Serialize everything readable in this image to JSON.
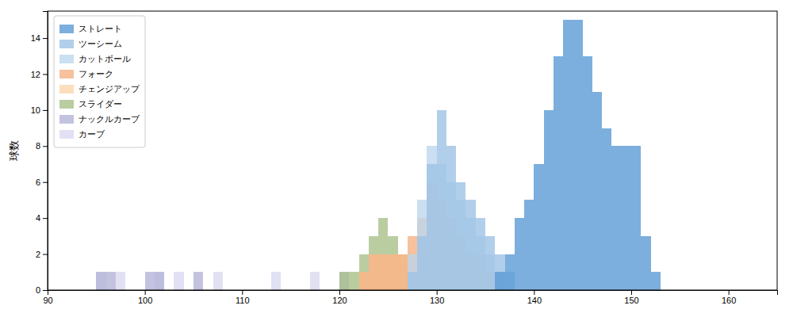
{
  "chart_data": {
    "type": "histogram",
    "ylabel": "球数",
    "xlim": [
      90,
      165
    ],
    "ylim": [
      0,
      15.5
    ],
    "xticks": [
      90,
      100,
      110,
      120,
      130,
      140,
      150,
      160
    ],
    "yticks": [
      0,
      2,
      4,
      6,
      8,
      10,
      12,
      14
    ],
    "legend": "upper left",
    "bins": [
      90,
      91,
      92,
      93,
      94,
      95,
      96,
      97,
      98,
      99,
      100,
      101,
      102,
      103,
      104,
      105,
      106,
      107,
      108,
      109,
      110,
      111,
      112,
      113,
      114,
      115,
      116,
      117,
      118,
      119,
      120,
      121,
      122,
      123,
      124,
      125,
      126,
      127,
      128,
      129,
      130,
      131,
      132,
      133,
      134,
      135,
      136,
      137,
      138,
      139,
      140,
      141,
      142,
      143,
      144,
      145,
      146,
      147,
      148,
      149,
      150,
      151,
      152,
      153,
      154,
      155,
      156,
      157,
      158,
      159,
      160,
      161,
      162,
      163,
      164,
      165
    ],
    "series": [
      {
        "name": "ストレート",
        "color": "#5B9BD5",
        "values": [
          0,
          0,
          0,
          0,
          0,
          0,
          0,
          0,
          0,
          0,
          0,
          0,
          0,
          0,
          0,
          0,
          0,
          0,
          0,
          0,
          0,
          0,
          0,
          0,
          0,
          0,
          0,
          0,
          0,
          0,
          0,
          0,
          0,
          0,
          0,
          0,
          0,
          0,
          0,
          0,
          0,
          0,
          0,
          0,
          0,
          0,
          1,
          2,
          4,
          5,
          7,
          10,
          13,
          15,
          15,
          13,
          11,
          9,
          8,
          8,
          8,
          3,
          1,
          0,
          0,
          0,
          0,
          0,
          0,
          0,
          0,
          0,
          0,
          0,
          0
        ]
      },
      {
        "name": "ツーシーム",
        "color": "#9DC3E6",
        "values": [
          0,
          0,
          0,
          0,
          0,
          0,
          0,
          0,
          0,
          0,
          0,
          0,
          0,
          0,
          0,
          0,
          0,
          0,
          0,
          0,
          0,
          0,
          0,
          0,
          0,
          0,
          0,
          0,
          0,
          0,
          0,
          0,
          0,
          0,
          0,
          0,
          0,
          1,
          3,
          7,
          10,
          8,
          6,
          5,
          4,
          3,
          2,
          1,
          0,
          0,
          0,
          0,
          0,
          0,
          0,
          0,
          0,
          0,
          0,
          0,
          0,
          0,
          0,
          0,
          0,
          0,
          0,
          0,
          0,
          0,
          0,
          0,
          0,
          0,
          0
        ]
      },
      {
        "name": "カットボール",
        "color": "#BDD7EE",
        "values": [
          0,
          0,
          0,
          0,
          0,
          0,
          0,
          0,
          0,
          0,
          0,
          0,
          0,
          0,
          0,
          0,
          0,
          0,
          0,
          0,
          0,
          0,
          0,
          0,
          0,
          0,
          0,
          0,
          0,
          0,
          0,
          0,
          0,
          0,
          0,
          0,
          0,
          2,
          5,
          8,
          7,
          6,
          5,
          4,
          3,
          2,
          1,
          0,
          0,
          0,
          0,
          0,
          0,
          0,
          0,
          0,
          0,
          0,
          0,
          0,
          0,
          0,
          0,
          0,
          0,
          0,
          0,
          0,
          0,
          0,
          0,
          0,
          0,
          0,
          0
        ]
      },
      {
        "name": "フォーク",
        "color": "#F4B183",
        "values": [
          0,
          0,
          0,
          0,
          0,
          0,
          0,
          0,
          0,
          0,
          0,
          0,
          0,
          0,
          0,
          0,
          0,
          0,
          0,
          0,
          0,
          0,
          0,
          0,
          0,
          0,
          0,
          0,
          0,
          0,
          0,
          0,
          1,
          2,
          2,
          2,
          2,
          3,
          4,
          6,
          5,
          4,
          3,
          2,
          2,
          1,
          0,
          0,
          0,
          0,
          0,
          0,
          0,
          0,
          0,
          0,
          0,
          0,
          0,
          0,
          0,
          0,
          0,
          0,
          0,
          0,
          0,
          0,
          0,
          0,
          0,
          0,
          0,
          0,
          0
        ]
      },
      {
        "name": "チェンジアップ",
        "color": "#FAD7AC",
        "values": [
          0,
          0,
          0,
          0,
          0,
          0,
          0,
          0,
          0,
          0,
          0,
          0,
          0,
          0,
          0,
          0,
          0,
          0,
          0,
          0,
          0,
          0,
          0,
          0,
          0,
          0,
          0,
          0,
          0,
          0,
          0,
          0,
          1,
          2,
          2,
          2,
          2,
          2,
          2,
          2,
          2,
          1,
          1,
          1,
          1,
          1,
          0,
          0,
          0,
          0,
          0,
          0,
          0,
          0,
          0,
          0,
          0,
          0,
          0,
          0,
          0,
          0,
          0,
          0,
          0,
          0,
          0,
          0,
          0,
          0,
          0,
          0,
          0,
          0,
          0
        ]
      },
      {
        "name": "スライダー",
        "color": "#A9C08A",
        "values": [
          0,
          0,
          0,
          0,
          0,
          0,
          0,
          0,
          0,
          0,
          0,
          0,
          0,
          0,
          0,
          0,
          0,
          0,
          0,
          0,
          0,
          0,
          0,
          0,
          0,
          0,
          0,
          0,
          0,
          0,
          1,
          1,
          2,
          3,
          4,
          3,
          2,
          2,
          2,
          1,
          1,
          0,
          0,
          0,
          0,
          0,
          0,
          0,
          0,
          0,
          0,
          0,
          0,
          0,
          0,
          0,
          0,
          0,
          0,
          0,
          0,
          0,
          0,
          0,
          0,
          0,
          0,
          0,
          0,
          0,
          0,
          0,
          0,
          0,
          0
        ]
      },
      {
        "name": "ナックルカーブ",
        "color": "#B4B4D8",
        "values": [
          0,
          0,
          0,
          0,
          0,
          1,
          1,
          0,
          0,
          0,
          1,
          1,
          0,
          0,
          0,
          1,
          0,
          0,
          0,
          0,
          0,
          0,
          0,
          0,
          0,
          0,
          0,
          0,
          0,
          0,
          1,
          0,
          0,
          0,
          0,
          0,
          0,
          0,
          0,
          0,
          0,
          0,
          0,
          0,
          0,
          1,
          0,
          0,
          0,
          0,
          0,
          0,
          0,
          0,
          0,
          0,
          0,
          0,
          0,
          0,
          0,
          0,
          0,
          0,
          0,
          0,
          0,
          0,
          0,
          0,
          0,
          0,
          0,
          0,
          0
        ]
      },
      {
        "name": "カーブ",
        "color": "#D9D9F0",
        "values": [
          0,
          0,
          0,
          0,
          0,
          1,
          0,
          1,
          0,
          0,
          0,
          1,
          0,
          1,
          0,
          0,
          0,
          1,
          0,
          0,
          0,
          0,
          0,
          1,
          0,
          0,
          0,
          1,
          0,
          0,
          0,
          0,
          0,
          0,
          0,
          0,
          0,
          0,
          0,
          0,
          0,
          0,
          0,
          0,
          0,
          0,
          0,
          0,
          0,
          0,
          0,
          0,
          0,
          0,
          0,
          0,
          0,
          0,
          0,
          0,
          0,
          0,
          0,
          0,
          0,
          0,
          0,
          0,
          0,
          0,
          0,
          0,
          0,
          0,
          0
        ]
      }
    ]
  }
}
